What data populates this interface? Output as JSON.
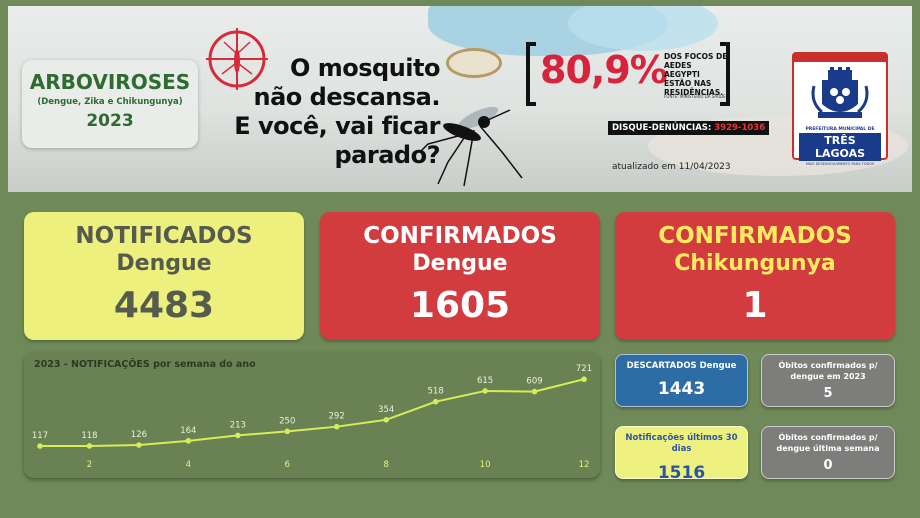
{
  "banner": {
    "title": "ARBOVIROSES",
    "subtitle": "(Dengue, Zika e Chikungunya)",
    "year": "2023",
    "slogan": [
      "O mosquito",
      "não descansa.",
      "E você, vai ficar",
      "parado?"
    ],
    "stat_percent": "80,9%",
    "stat_desc": [
      "DOS FOCOS DE",
      "AEDES AEGYPTI",
      "ESTÃO NAS",
      "RESIDÊNCIAS."
    ],
    "stat_source": "FONTE: MINISTÉRIO DA SAÚDE",
    "hotline_label": "DISQUE-DENÚNCIAS:",
    "hotline_number": "3929-1036",
    "updated": "atualizado em 11/04/2023",
    "logo_org": "PREFEITURA MUNICIPAL DE",
    "logo_city": "TRÊS LAGOAS",
    "logo_tagline": "MAIS DESENVOLVIMENTO PARA TODOS"
  },
  "kpis": {
    "notificados": {
      "line1": "NOTIFICADOS",
      "line2": "Dengue",
      "value": "4483"
    },
    "confirmados_dengue": {
      "line1": "CONFIRMADOS",
      "line2": "Dengue",
      "value": "1605"
    },
    "confirmados_chik": {
      "line1": "CONFIRMADOS",
      "line2": "Chikungunya",
      "value": "1"
    }
  },
  "cards": {
    "descartados": {
      "label": "DESCARTADOS Dengue",
      "value": "1443"
    },
    "notif30": {
      "label": "Notificações últimos 30 dias",
      "value": "1516"
    },
    "obitos2023": {
      "label": "Óbitos confirmados p/ dengue em 2023",
      "value": "5"
    },
    "obitos_semana": {
      "label": "Óbitos confirmados p/ dengue última semana",
      "value": "0"
    }
  },
  "colors": {
    "line": "#d6ec58",
    "axis_label": "#e8f07a",
    "data_label": "#e9f0d9"
  },
  "chart_data": {
    "type": "line",
    "title": "2023 - NOTIFICAÇÕES por semana do ano",
    "x": [
      1,
      2,
      3,
      4,
      5,
      6,
      7,
      8,
      9,
      10,
      11,
      12
    ],
    "series": [
      {
        "values": [
          117,
          118,
          126,
          164,
          213,
          250,
          292,
          354,
          518,
          615,
          609,
          721
        ]
      }
    ],
    "x_tick_labels": [
      "2",
      "4",
      "6",
      "8",
      "10",
      "12"
    ],
    "x_ticks": [
      2,
      4,
      6,
      8,
      10,
      12
    ],
    "ylim": [
      0,
      760
    ],
    "grid": false
  }
}
